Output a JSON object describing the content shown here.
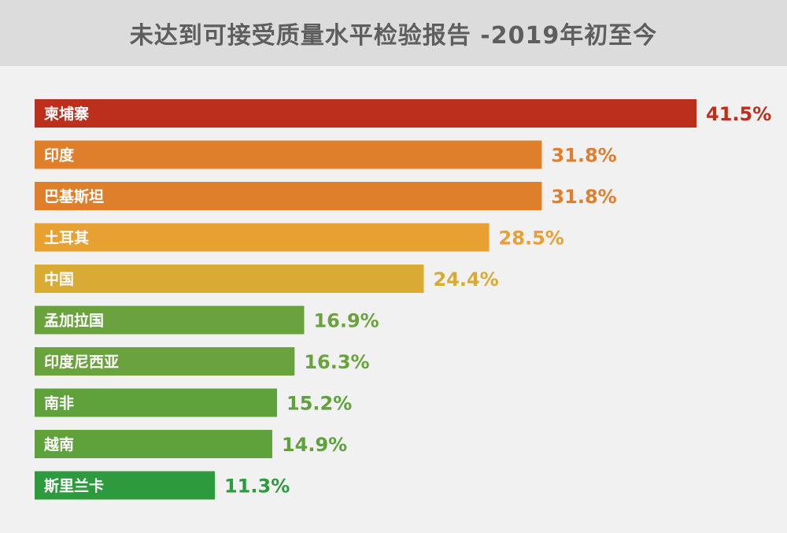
{
  "header": {
    "title": "未达到可接受质量水平检验报告 -2019年初至今"
  },
  "chart_data": {
    "type": "bar",
    "orientation": "horizontal",
    "title": "未达到可接受质量水平检验报告 -2019年初至今",
    "categories": [
      "柬埔寨",
      "印度",
      "巴基斯坦",
      "土耳其",
      "中国",
      "孟加拉国",
      "印度尼西亚",
      "南非",
      "越南",
      "斯里兰卡"
    ],
    "values": [
      41.5,
      31.8,
      31.8,
      28.5,
      24.4,
      16.9,
      16.3,
      15.2,
      14.9,
      11.3
    ],
    "value_labels": [
      "41.5%",
      "31.8%",
      "31.8%",
      "28.5%",
      "24.4%",
      "16.9%",
      "16.3%",
      "15.2%",
      "14.9%",
      "11.3%"
    ],
    "colors": [
      "#bb2f1c",
      "#df7f2b",
      "#df7f2b",
      "#e8a030",
      "#d9ab35",
      "#6aa33d",
      "#6aa33d",
      "#5fa23b",
      "#5fa23b",
      "#2e9a3e"
    ],
    "unit": "%",
    "grid": false,
    "legend": "none"
  }
}
